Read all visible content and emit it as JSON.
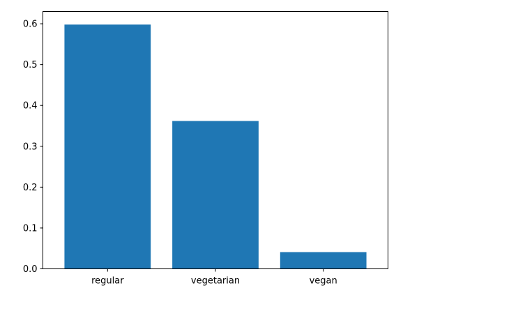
{
  "chart_data": {
    "type": "bar",
    "categories": [
      "regular",
      "vegetarian",
      "vegan"
    ],
    "values": [
      0.598,
      0.362,
      0.041
    ],
    "title": "",
    "xlabel": "",
    "ylabel": "",
    "ylim": [
      0,
      0.63
    ],
    "yticks": [
      0.0,
      0.1,
      0.2,
      0.3,
      0.4,
      0.5,
      0.6
    ],
    "ytick_labels": [
      "0.0",
      "0.1",
      "0.2",
      "0.3",
      "0.4",
      "0.5",
      "0.6"
    ],
    "grid": false,
    "bar_color": "#1f77b4"
  }
}
